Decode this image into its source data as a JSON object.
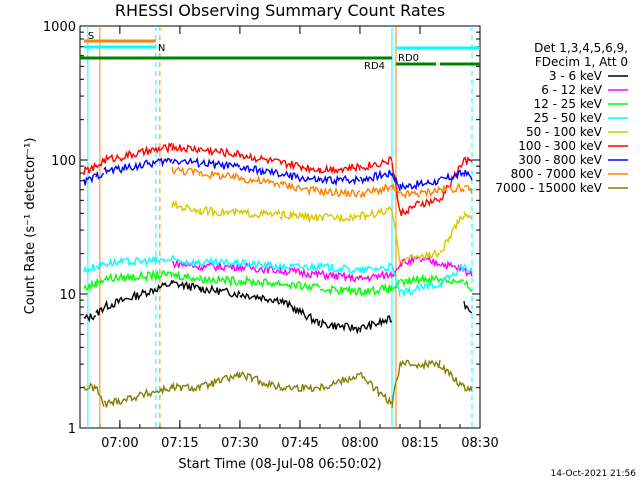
{
  "chart_data": {
    "type": "line",
    "title": "RHESSI Observing Summary Count Rates",
    "xlabel": "Start Time (08-Jul-08 06:50:02)",
    "ylabel": "Count Rate (s⁻¹ detector⁻¹)",
    "yscale": "log",
    "ylim": [
      1,
      1000
    ],
    "xlim": [
      "06:50:02",
      "08:30:00"
    ],
    "y_ticks": [
      "1",
      "10",
      "100",
      "1000"
    ],
    "x_ticks": [
      "07:00",
      "07:15",
      "07:30",
      "07:45",
      "08:00",
      "08:15",
      "08:30"
    ],
    "legend_header": [
      "Det 1,3,4,5,6,9,",
      "FDecim 1, Att 0"
    ],
    "footer_timestamp": "14-Oct-2021 21:56",
    "legend_location": "right",
    "grid": false,
    "series": [
      {
        "name": "3 - 6 keV",
        "color": "#000000",
        "x": [
          "06:51",
          "06:54",
          "06:56",
          "07:13",
          "07:20",
          "07:30",
          "07:40",
          "07:50",
          "08:00",
          "08:08",
          "08:10",
          "08:15",
          "08:20",
          "08:26",
          "08:28"
        ],
        "y": [
          6.5,
          7,
          8,
          12,
          11,
          10,
          9,
          6,
          5.5,
          6.5,
          null,
          null,
          null,
          8.5,
          7.5
        ]
      },
      {
        "name": "6 - 12 keV",
        "color": "#ff00ff",
        "x": [
          "06:51",
          "06:54",
          "06:56",
          "07:13",
          "07:20",
          "07:30",
          "07:40",
          "07:50",
          "08:00",
          "08:08",
          "08:10",
          "08:15",
          "08:20",
          "08:26",
          "08:28"
        ],
        "y": [
          null,
          null,
          null,
          17,
          16,
          16,
          15,
          14,
          13,
          14,
          17,
          18,
          17,
          15,
          14
        ]
      },
      {
        "name": "12 - 25 keV",
        "color": "#00ff00",
        "x": [
          "06:51",
          "06:54",
          "06:56",
          "07:13",
          "07:20",
          "07:30",
          "07:40",
          "07:50",
          "08:00",
          "08:08",
          "08:10",
          "08:15",
          "08:20",
          "08:26",
          "08:28"
        ],
        "y": [
          11,
          12,
          13,
          14,
          13,
          12.5,
          12,
          11,
          10.5,
          11,
          12,
          13,
          13,
          12,
          11
        ]
      },
      {
        "name": "25 - 50 keV",
        "color": "#00ffff",
        "x": [
          "06:51",
          "06:54",
          "06:56",
          "07:13",
          "07:20",
          "07:30",
          "07:40",
          "07:50",
          "08:00",
          "08:08",
          "08:10",
          "08:15",
          "08:20",
          "08:26",
          "08:28"
        ],
        "y": [
          15,
          16,
          17,
          18,
          17,
          17,
          16,
          16,
          15,
          16,
          10,
          11,
          12,
          16,
          15
        ]
      },
      {
        "name": "50 - 100 keV",
        "color": "#d8c800",
        "x": [
          "06:51",
          "06:54",
          "06:56",
          "07:13",
          "07:20",
          "07:30",
          "07:40",
          "07:50",
          "08:00",
          "08:08",
          "08:10",
          "08:15",
          "08:20",
          "08:26",
          "08:28"
        ],
        "y": [
          null,
          null,
          null,
          46,
          42,
          40,
          39,
          37,
          38,
          42,
          18,
          19,
          20,
          40,
          38
        ]
      },
      {
        "name": "100 - 300 keV",
        "color": "#ff0000",
        "x": [
          "06:51",
          "06:54",
          "06:56",
          "07:13",
          "07:20",
          "07:30",
          "07:40",
          "07:50",
          "08:00",
          "08:08",
          "08:10",
          "08:15",
          "08:20",
          "08:26",
          "08:28"
        ],
        "y": [
          82,
          88,
          100,
          125,
          120,
          110,
          95,
          85,
          88,
          100,
          40,
          47,
          50,
          100,
          95
        ]
      },
      {
        "name": "300 - 800 keV",
        "color": "#0000ff",
        "x": [
          "06:51",
          "06:54",
          "06:56",
          "07:13",
          "07:20",
          "07:30",
          "07:40",
          "07:50",
          "08:00",
          "08:08",
          "08:10",
          "08:15",
          "08:20",
          "08:26",
          "08:28"
        ],
        "y": [
          68,
          75,
          82,
          100,
          95,
          88,
          78,
          70,
          72,
          80,
          63,
          66,
          70,
          80,
          75
        ]
      },
      {
        "name": "800 - 7000 keV",
        "color": "#ff8000",
        "x": [
          "06:51",
          "06:54",
          "06:56",
          "07:13",
          "07:20",
          "07:30",
          "07:40",
          "07:50",
          "08:00",
          "08:08",
          "08:10",
          "08:15",
          "08:20",
          "08:26",
          "08:28"
        ],
        "y": [
          null,
          null,
          null,
          85,
          80,
          73,
          66,
          58,
          56,
          62,
          55,
          56,
          60,
          62,
          58
        ]
      },
      {
        "name": "7000 - 15000 keV",
        "color": "#808000",
        "x": [
          "06:51",
          "06:54",
          "06:56",
          "07:13",
          "07:20",
          "07:30",
          "07:40",
          "07:50",
          "08:00",
          "08:08",
          "08:10",
          "08:15",
          "08:20",
          "08:26",
          "08:28"
        ],
        "y": [
          2,
          2,
          1.5,
          2,
          2,
          2.5,
          2,
          2,
          2.5,
          1.5,
          3,
          3,
          3,
          2,
          2
        ]
      }
    ],
    "flag_bars": [
      {
        "label": "S",
        "color": "#ff8000",
        "start": "06:51",
        "end": "07:09"
      },
      {
        "label": "N",
        "color": "#00ffff",
        "start": "06:51",
        "end": "07:09"
      },
      {
        "label": "",
        "color": "#00ffff",
        "start": "08:09",
        "end": "08:30"
      },
      {
        "label": "RD0",
        "color": "#008000",
        "start": "08:09",
        "end": "08:19"
      },
      {
        "label": "",
        "color": "#008000",
        "start": "08:20",
        "end": "08:30"
      },
      {
        "label": "RD4",
        "color": "#008000",
        "start": "06:50",
        "end": "08:08"
      }
    ],
    "markers": [
      {
        "time": "06:52",
        "color": "#00ffff",
        "style": "solid"
      },
      {
        "time": "06:55",
        "color": "#ff8000",
        "style": "solid"
      },
      {
        "time": "07:09",
        "color": "#00ffff",
        "style": "dashed"
      },
      {
        "time": "07:10",
        "color": "#ff8000",
        "style": "dashed"
      },
      {
        "time": "08:08",
        "color": "#00ffff",
        "style": "solid"
      },
      {
        "time": "08:09",
        "color": "#ff8000",
        "style": "solid"
      },
      {
        "time": "08:28",
        "color": "#00ffff",
        "style": "dashed"
      }
    ]
  }
}
